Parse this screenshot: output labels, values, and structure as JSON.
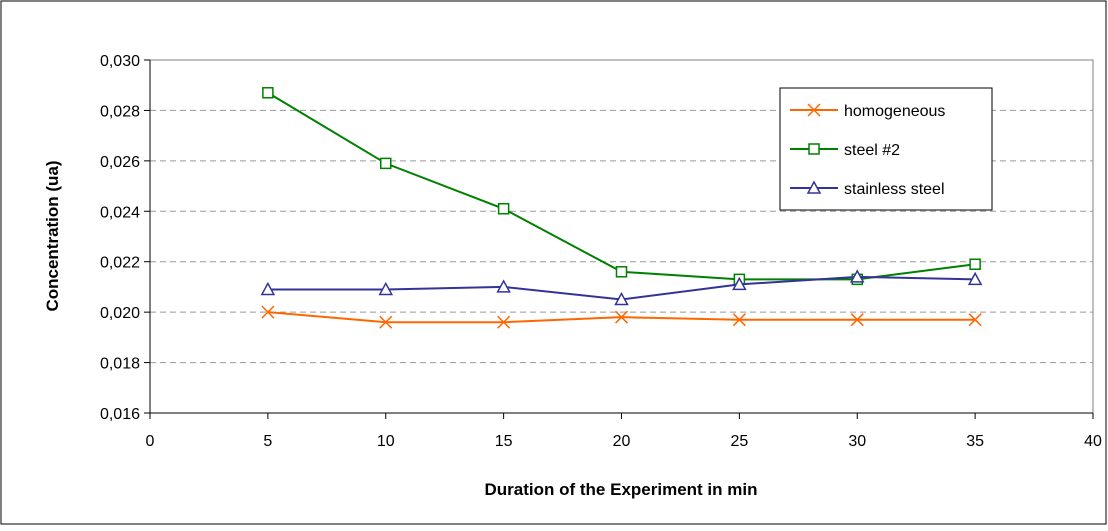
{
  "chart_data": {
    "type": "line",
    "title": "",
    "xlabel": "Duration of the Experiment in min",
    "ylabel": "Concentration (ua)",
    "xlim": [
      0,
      40
    ],
    "ylim": [
      0.016,
      0.03
    ],
    "x_ticks": [
      "0",
      "5",
      "10",
      "15",
      "20",
      "25",
      "30",
      "35",
      "40"
    ],
    "y_ticks": [
      "0,016",
      "0,018",
      "0,020",
      "0,022",
      "0,024",
      "0,026",
      "0,028",
      "0,030"
    ],
    "grid": "horizontal dashed",
    "legend_position": "top-right",
    "x": [
      5,
      10,
      15,
      20,
      25,
      30,
      35
    ],
    "series": [
      {
        "name": "homogeneous",
        "color": "#ff6600",
        "marker": "x",
        "values": [
          0.02,
          0.0196,
          0.0196,
          0.0198,
          0.0197,
          0.0197,
          0.0197
        ]
      },
      {
        "name": "steel #2",
        "color": "#008000",
        "marker": "square",
        "values": [
          0.0287,
          0.0259,
          0.0241,
          0.0216,
          0.0213,
          0.0213,
          0.0219
        ]
      },
      {
        "name": "stainless steel",
        "color": "#333399",
        "marker": "triangle",
        "values": [
          0.0209,
          0.0209,
          0.021,
          0.0205,
          0.0211,
          0.0214,
          0.0213
        ]
      }
    ]
  }
}
